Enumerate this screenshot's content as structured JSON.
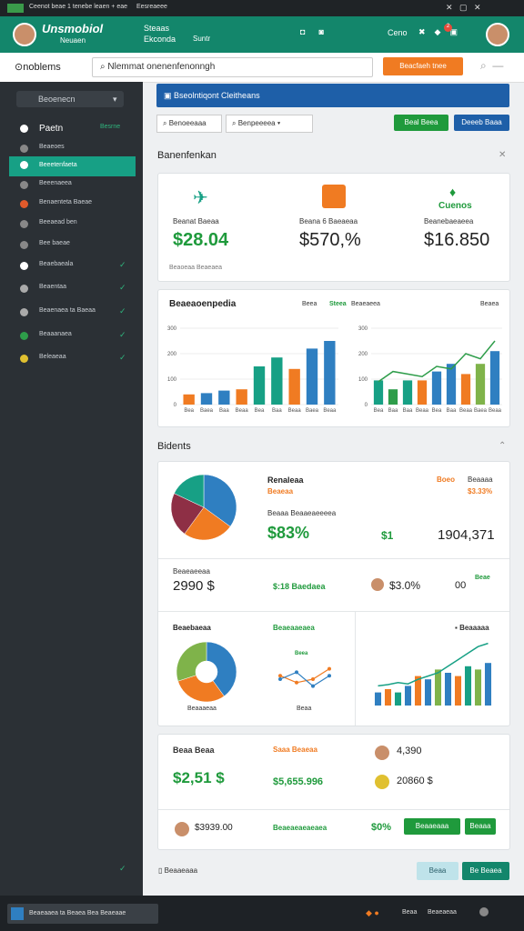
{
  "browser_bar": {
    "tab": "Ceenot beae 1 tenebe leaen + eae",
    "tab2": "Eesreaeee"
  },
  "header": {
    "brand": "Unsmobiol",
    "brand_sub": "Neuaen",
    "nav": [
      "Steaas",
      "Ekconda"
    ],
    "nav_sub": "Suntr",
    "user": "Ceno",
    "badge": "2"
  },
  "toolbar": {
    "logo": "noblems",
    "search": "Nlemmat onenenfenonngh",
    "button": "Beacfaeh tnee"
  },
  "sidebar": {
    "dropdown": "Beoenecn",
    "items": [
      {
        "label": "Paetn",
        "tag": "Besrne"
      },
      {
        "label": "Beaeoes"
      },
      {
        "label": "Beeetenfaeta"
      },
      {
        "label": "Beeenaeea"
      },
      {
        "label": "Benaenteta Baeae"
      },
      {
        "label": "Beeaead ben"
      },
      {
        "label": "Bee baeae"
      },
      {
        "label": "Beaebaeala"
      },
      {
        "label": "Beaentaa"
      },
      {
        "label": "Beaenaea ta Baeaa"
      },
      {
        "label": "Beaaanaea"
      },
      {
        "label": "Beleaeaa"
      }
    ]
  },
  "main": {
    "banner": "Bseolntiqont Cleitheans",
    "filter": "Benoeeaaa",
    "select": "Benpeeeea",
    "buttons": [
      "Beal Beea",
      "Deeeb Baaa"
    ]
  },
  "overview": {
    "title": "Banenfenkan",
    "cards": [
      {
        "label": "Beanat Baeaa",
        "value": "$28.04"
      },
      {
        "label": "Beana 6 Baeaeaa",
        "value": "$570,%"
      },
      {
        "title": "Cuenos",
        "label": "Beanebaeaeea",
        "value": "$16.850"
      }
    ],
    "note": "Beaoeaa Beaeaea",
    "chart_title": "Beaeaoenpedia",
    "legend": [
      "Beea",
      "Steea",
      "Beaeaeea",
      "Beaea"
    ],
    "charts": [
      {
        "type": "bar",
        "ylim": [
          0,
          300
        ],
        "yticks": [
          0,
          100,
          200,
          300
        ],
        "categories": [
          "Bea",
          "Baea",
          "Baa",
          "Beaa",
          "Bea",
          "Baa",
          "Beaa",
          "Baea",
          "Beaa"
        ],
        "values": [
          40,
          45,
          55,
          60,
          150,
          185,
          140,
          220,
          250
        ],
        "colors": [
          "#f07b22",
          "#2f7fc1",
          "#2f7fc1",
          "#f07b22",
          "#17a085",
          "#17a085",
          "#f07b22",
          "#2f7fc1",
          "#2f7fc1"
        ]
      },
      {
        "type": "bar-line",
        "ylim": [
          0,
          300
        ],
        "yticks": [
          0,
          100,
          200,
          300
        ],
        "categories": [
          "Bea",
          "Baa",
          "Baa",
          "Beaa",
          "Bea",
          "Baa",
          "Beaa",
          "Baea",
          "Beaa"
        ],
        "values": [
          95,
          60,
          95,
          95,
          130,
          160,
          120,
          160,
          210
        ],
        "colors": [
          "#17a085",
          "#2e9d4a",
          "#17a085",
          "#f07b22",
          "#2f7fc1",
          "#2f7fc1",
          "#f07b22",
          "#7fb34a",
          "#2f7fc1"
        ],
        "line": [
          90,
          130,
          120,
          110,
          150,
          140,
          200,
          180,
          250
        ],
        "line_color": "#2e9d4a"
      }
    ]
  },
  "students": {
    "title": "Bidents",
    "pie": {
      "values": [
        35,
        25,
        22,
        18
      ],
      "colors": [
        "#2f7fc1",
        "#f07b22",
        "#8e2f45",
        "#17a085"
      ]
    },
    "pie_text": {
      "t1": "Renaleaa",
      "t2": "Beaeaa",
      "t3": "Boeo",
      "t4": "Beaaaa",
      "t5": "$3.33%",
      "t6": "Beaaa Beaaeaeeeea",
      "t7": "$83%",
      "t8": "$1",
      "t9": "1904,371"
    },
    "row": {
      "label": "Beaeaeeaa",
      "value": "2990 $",
      "green": "$:18 Baedaea",
      "pct": "$3.0%",
      "count": "00",
      "tag": "Beae"
    },
    "donut_panel": {
      "title": "Beaebaeaa",
      "caption": "Beaaaeaa",
      "values": [
        40,
        30,
        30
      ],
      "colors": [
        "#2f7fc1",
        "#f07b22",
        "#7fb34a"
      ]
    },
    "lines_panel": {
      "title": "Beaeaaeaea",
      "tag": "Beea",
      "caption": "Beaa",
      "ylim": [
        0,
        10
      ],
      "series": [
        {
          "values": [
            6,
            4,
            5,
            8
          ],
          "color": "#f07b22"
        },
        {
          "values": [
            5,
            7,
            3,
            6
          ],
          "color": "#2f7fc1"
        }
      ]
    },
    "bars_panel": {
      "title": "Beaaaaa",
      "ylim": [
        0,
        100
      ],
      "values": [
        20,
        25,
        20,
        30,
        45,
        40,
        55,
        50,
        45,
        60,
        55,
        65
      ],
      "colors": [
        "#2f7fc1",
        "#f07b22",
        "#17a085",
        "#2f7fc1",
        "#f07b22",
        "#2f7fc1",
        "#7fb34a",
        "#2f7fc1",
        "#f07b22",
        "#17a085",
        "#7fb34a",
        "#2f7fc1"
      ],
      "line": [
        30,
        32,
        35,
        33,
        40,
        45,
        50,
        60,
        70,
        80,
        90,
        95
      ],
      "line_color": "#17a085"
    }
  },
  "summary": {
    "title": "Beaa Beaa",
    "value": "$2,51 $",
    "orange": "Saaa Beaeaa",
    "green": "$5,655.996",
    "a1": "4,390",
    "a2": "20860 $",
    "v2": "$3939.00",
    "g2": "Beaeaeaeaeaea",
    "g3": "$0%",
    "buttons": [
      "Beaaeaaa",
      "Beaaa"
    ]
  },
  "footer": {
    "label": "Beaaeaaa",
    "buttons": [
      "Beaa",
      "Be Beaea"
    ]
  },
  "taskbar": {
    "left": "Beaeaaea ta Beaea Bea Beaeaae",
    "r1": "Beaa",
    "r2": "Beaeaeaa"
  }
}
